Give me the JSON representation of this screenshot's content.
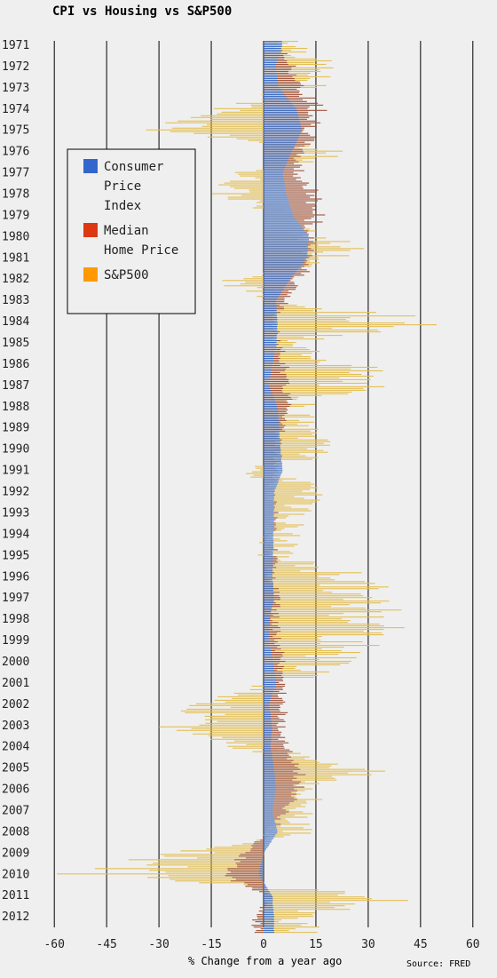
{
  "chart_data": {
    "type": "bar",
    "orientation": "horizontal",
    "title": "CPI vs Housing vs S&P500",
    "xlabel": "% Change from a year ago",
    "source": "Source: FRED",
    "xlim": [
      -60,
      65
    ],
    "xticks": [
      "-60",
      "-45",
      "-30",
      "-15",
      "0",
      "15",
      "30",
      "45",
      "60"
    ],
    "year_labels": [
      "1971",
      "1972",
      "1973",
      "1974",
      "1975",
      "1976",
      "1977",
      "1978",
      "1979",
      "1980",
      "1981",
      "1982",
      "1983",
      "1984",
      "1985",
      "1986",
      "1987",
      "1988",
      "1989",
      "1990",
      "1991",
      "1992",
      "1993",
      "1994",
      "1995",
      "1996",
      "1997",
      "1998",
      "1999",
      "2000",
      "2001",
      "2002",
      "2003",
      "2004",
      "2005",
      "2006",
      "2007",
      "2008",
      "2009",
      "2010",
      "2011",
      "2012"
    ],
    "grid": "vertical",
    "legend_position": "left",
    "legend": [
      {
        "label_lines": [
          "Consumer",
          "Price",
          "Index"
        ],
        "color": "#3366cc"
      },
      {
        "label_lines": [
          "Median",
          "Home Price"
        ],
        "color": "#dc3912"
      },
      {
        "label_lines": [
          "S&P500"
        ],
        "color": "#ff9900"
      }
    ],
    "series": [
      {
        "name": "Consumer Price Index",
        "color": "#3a6ec6",
        "values_by_year": [
          5.3,
          3.4,
          4.3,
          9.5,
          11.0,
          8.0,
          5.5,
          6.5,
          8.5,
          13.0,
          12.5,
          7.5,
          3.5,
          4.0,
          3.7,
          2.5,
          1.5,
          4.0,
          4.5,
          4.8,
          5.5,
          3.0,
          3.0,
          2.8,
          2.7,
          2.5,
          3.0,
          1.7,
          1.5,
          2.7,
          3.7,
          1.5,
          2.5,
          2.0,
          3.0,
          3.5,
          2.5,
          4.0,
          0.0,
          -1.5,
          2.5,
          3.0
        ]
      },
      {
        "name": "Median Home Price",
        "color": "#a0533a",
        "values_by_year": [
          4.0,
          8.0,
          10.0,
          16.0,
          14.0,
          10.0,
          10.0,
          14.0,
          15.0,
          12.0,
          14.0,
          10.0,
          6.0,
          3.0,
          4.0,
          6.0,
          6.0,
          8.0,
          5.0,
          4.0,
          4.0,
          2.0,
          3.0,
          2.0,
          3.0,
          2.0,
          4.0,
          3.0,
          4.0,
          5.0,
          5.0,
          6.0,
          5.0,
          6.0,
          10.0,
          10.0,
          6.0,
          2.0,
          -5.0,
          -12.0,
          2.0,
          -2.0
        ]
      },
      {
        "name": "S&P500",
        "color": "#e3bf55",
        "values_by_year": [
          10.0,
          15.0,
          12.0,
          -10.0,
          -25.0,
          20.0,
          -4.0,
          -10.0,
          8.0,
          15.0,
          25.0,
          -10.0,
          5.0,
          40.0,
          5.0,
          25.0,
          25.0,
          8.0,
          10.0,
          20.0,
          -5.0,
          18.0,
          8.0,
          5.0,
          3.0,
          25.0,
          25.0,
          35.0,
          25.0,
          20.0,
          5.0,
          -15.0,
          -25.0,
          -5.0,
          30.0,
          10.0,
          12.0,
          10.0,
          -20.0,
          -45.0,
          35.0,
          10.0
        ]
      }
    ]
  }
}
